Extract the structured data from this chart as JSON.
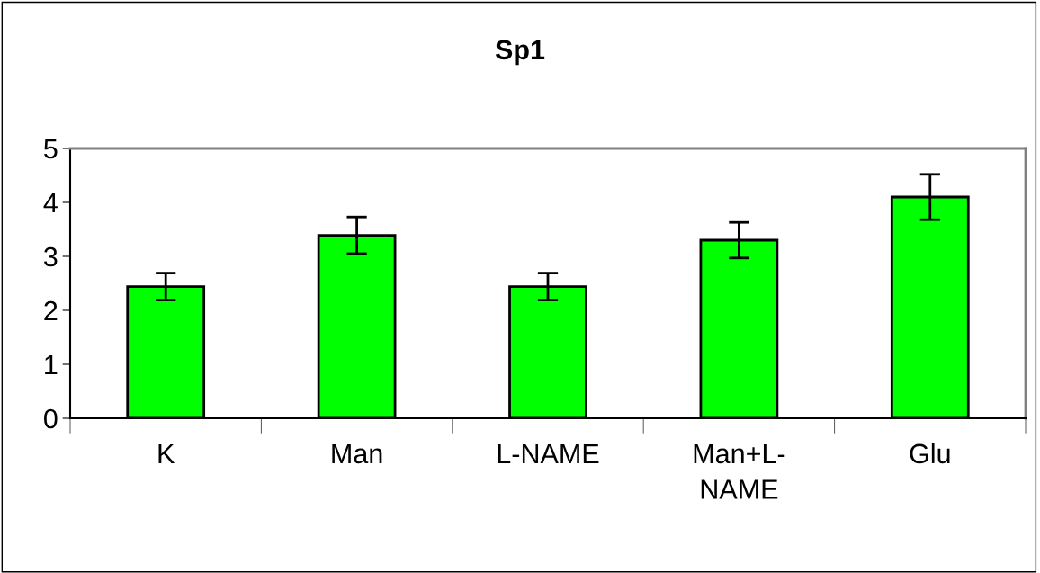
{
  "chart_data": {
    "type": "bar",
    "title": "Sp1",
    "categories": [
      "K",
      "Man",
      "L-NAME",
      "Man+L-\nNAME",
      "Glu"
    ],
    "values": [
      2.44,
      3.39,
      2.44,
      3.3,
      4.1
    ],
    "errors": [
      0.25,
      0.34,
      0.25,
      0.33,
      0.42
    ],
    "color": "#00ff00",
    "ylim": [
      0,
      5
    ],
    "yticks": [
      0,
      1,
      2,
      3,
      4,
      5
    ],
    "grid": false,
    "legend": false
  }
}
